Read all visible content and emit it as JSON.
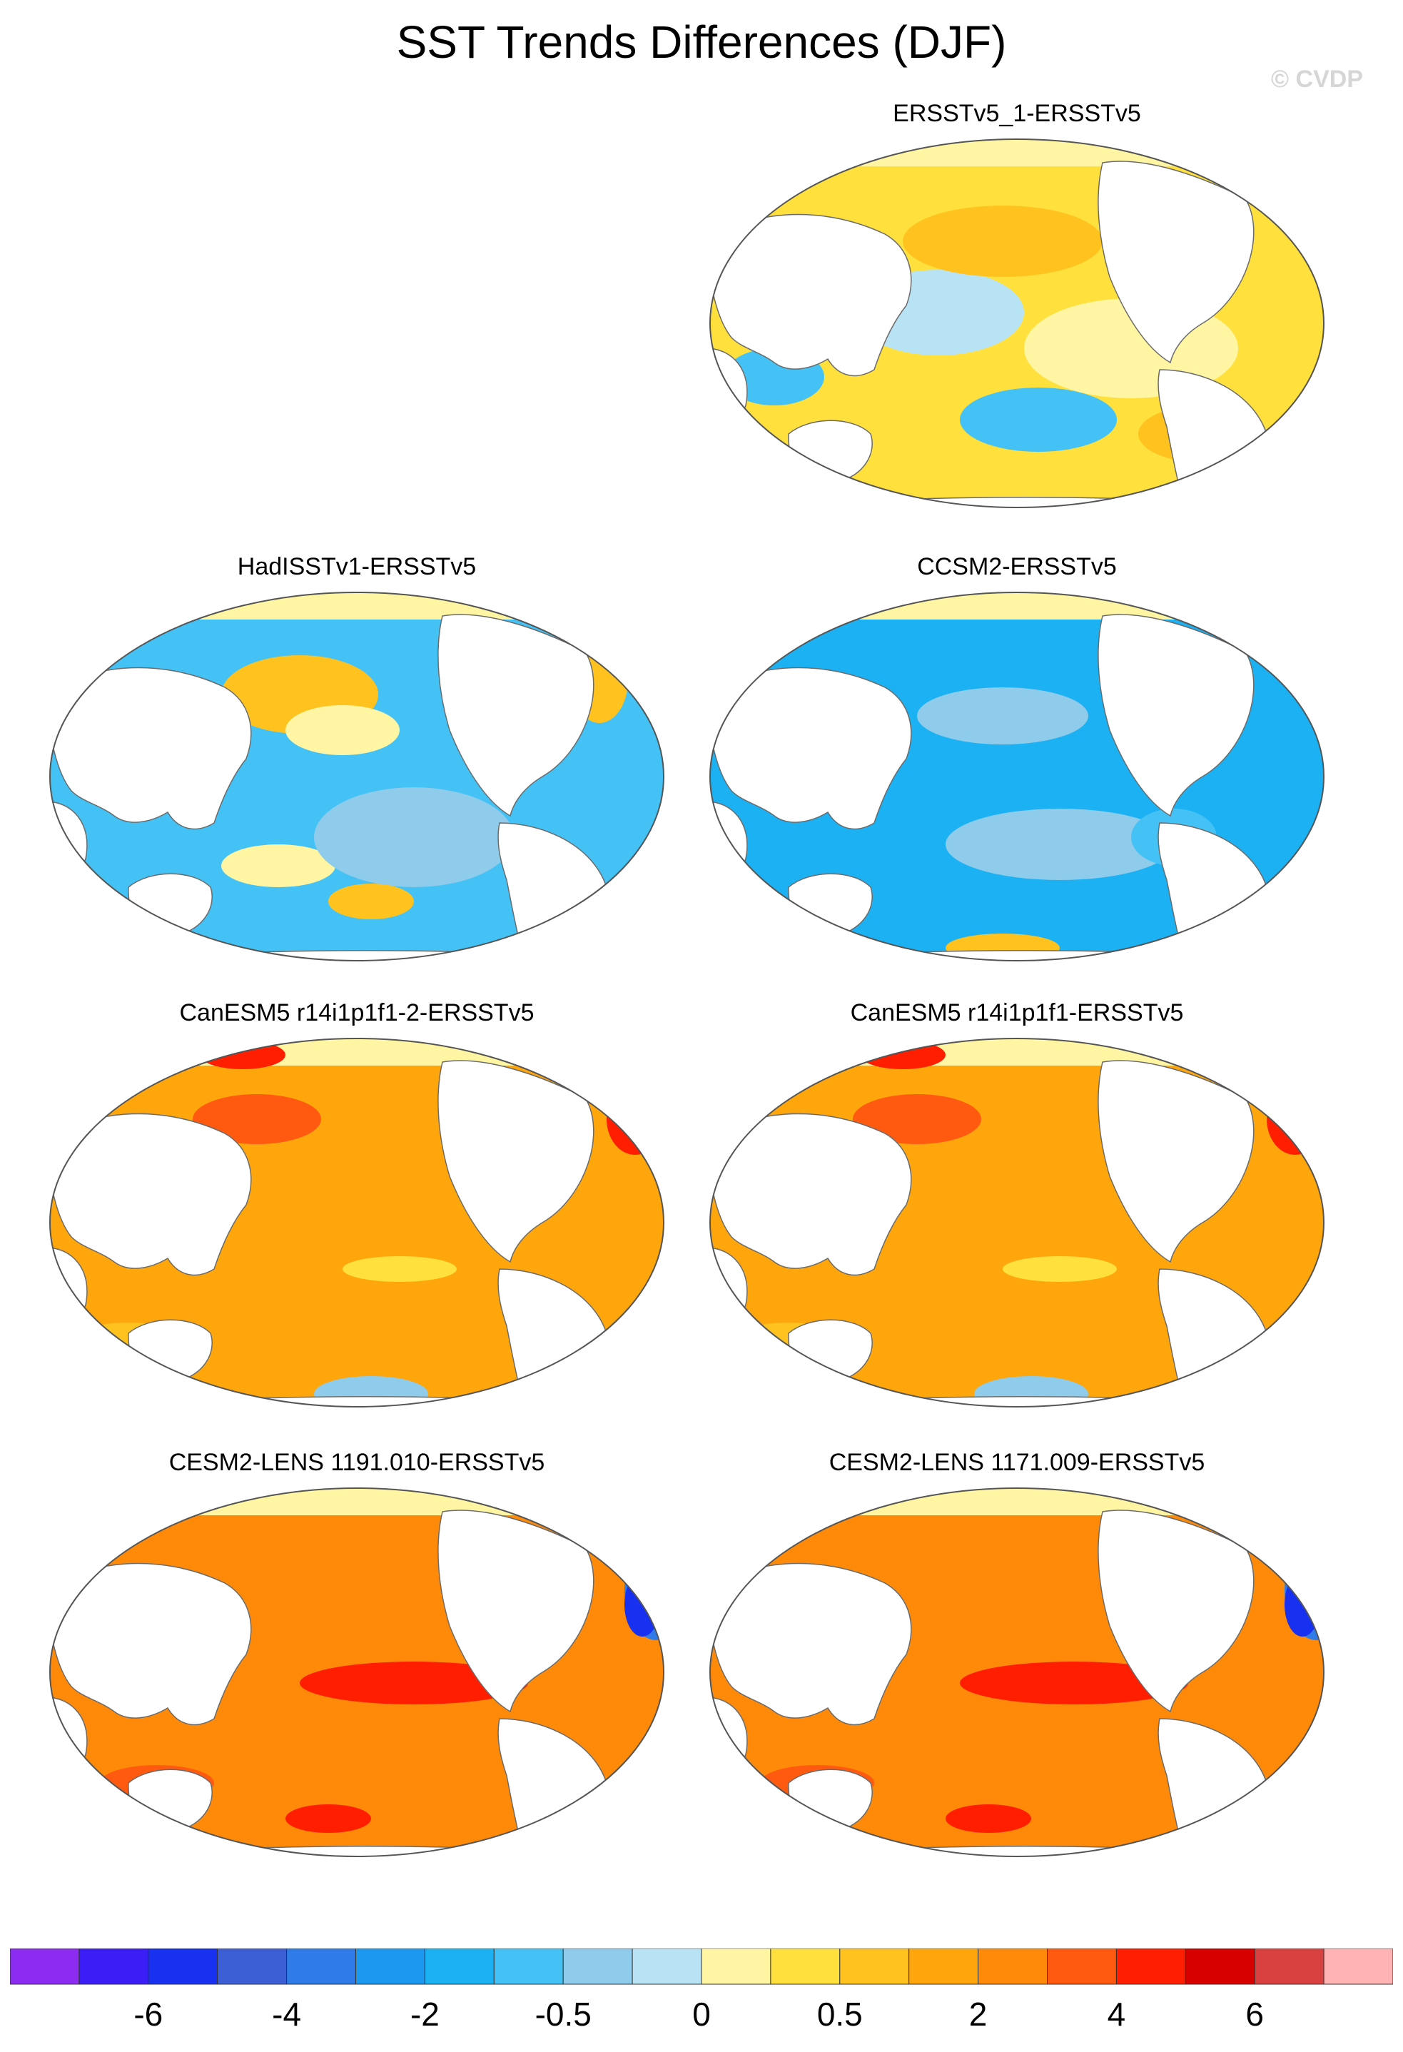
{
  "title": "SST Trends Differences (DJF)",
  "copyright": "© CVDP",
  "panels": [
    {
      "title": "ERSSTv5_1-ERSSTv5",
      "slot": 1,
      "regime": "mixed"
    },
    {
      "title": "HadISSTv1-ERSSTv5",
      "slot": 2,
      "regime": "cool"
    },
    {
      "title": "CCSM2-ERSSTv5",
      "slot": 3,
      "regime": "coolgrid"
    },
    {
      "title": "CanESM5 r14i1p1f1-2-ERSSTv5",
      "slot": 4,
      "regime": "warm"
    },
    {
      "title": "CanESM5 r14i1p1f1-ERSSTv5",
      "slot": 5,
      "regime": "warm"
    },
    {
      "title": "CESM2-LENS 1191.010-ERSSTv5",
      "slot": 6,
      "regime": "hot"
    },
    {
      "title": "CESM2-LENS 1171.009-ERSSTv5",
      "slot": 7,
      "regime": "hot"
    }
  ],
  "colorbar": {
    "colors": [
      "#8b2cf0",
      "#3a1ef5",
      "#1830f0",
      "#3c5fd6",
      "#2f7ce8",
      "#1d98f0",
      "#1cb1f2",
      "#44c2f5",
      "#8fcbea",
      "#b8e3f5",
      "#fff5a3",
      "#ffe03c",
      "#ffc21f",
      "#ffa60c",
      "#ff8a0a",
      "#ff5a10",
      "#ff1e00",
      "#d60000",
      "#d94040",
      "#ffb3b3"
    ],
    "labels": [
      "-6",
      "-4",
      "-2",
      "-0.5",
      "0",
      "0.5",
      "2",
      "4",
      "6"
    ]
  }
}
